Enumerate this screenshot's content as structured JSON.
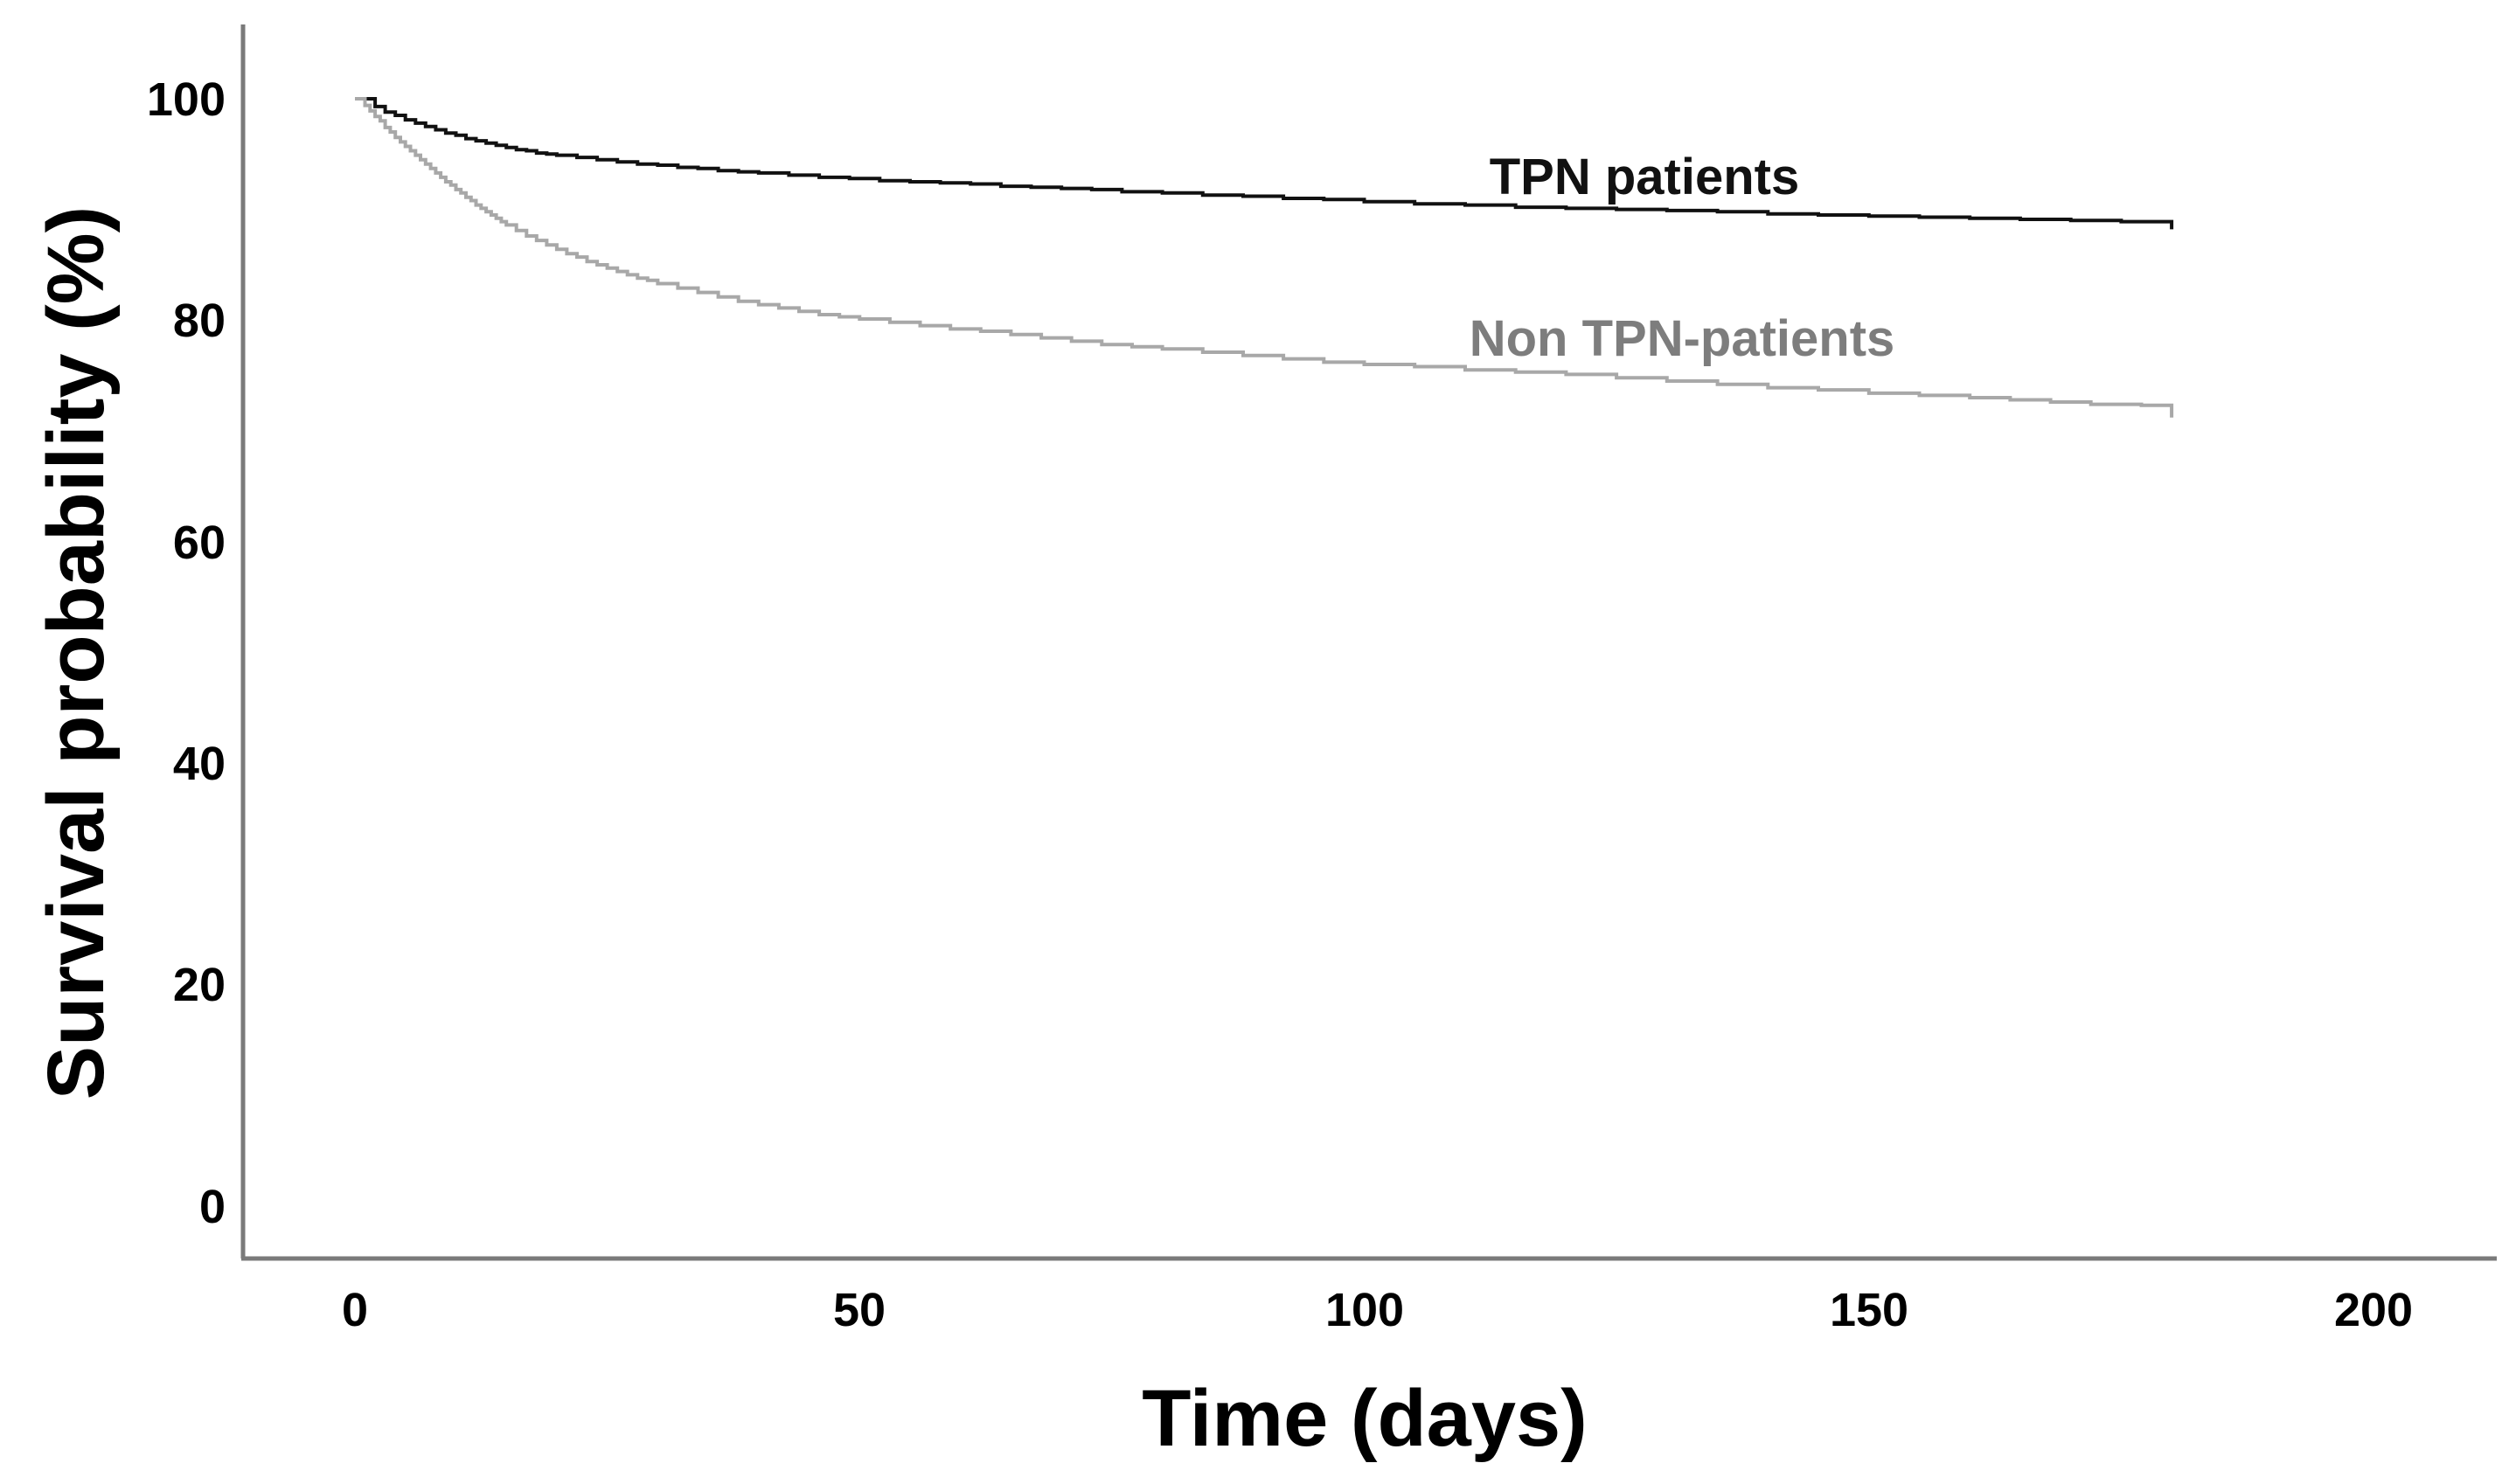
{
  "figure": {
    "background_color": "#ffffff",
    "axis_line_color": "#7a7a7a"
  },
  "chart_data": {
    "type": "line",
    "subtype": "kaplan-meier-step",
    "title": "",
    "xlabel": "Time (days)",
    "ylabel": "Survival probability (%)",
    "xlim": [
      0,
      212
    ],
    "ylim": [
      -4,
      107
    ],
    "x_ticks": [
      0,
      50,
      100,
      150,
      200
    ],
    "y_ticks": [
      100,
      80,
      60,
      40,
      20,
      0
    ],
    "grid": false,
    "legend_position": "inline-labels-on-plot",
    "series": [
      {
        "name": "TPN patients",
        "color": "#111111",
        "label_color": "#111111",
        "ends_at_day": 180,
        "points": [
          [
            0,
            100
          ],
          [
            1.5,
            100
          ],
          [
            2,
            99.3
          ],
          [
            3,
            98.8
          ],
          [
            4,
            98.5
          ],
          [
            5,
            98.1
          ],
          [
            6,
            97.8
          ],
          [
            7,
            97.5
          ],
          [
            8,
            97.2
          ],
          [
            9,
            96.9
          ],
          [
            10,
            96.7
          ],
          [
            11,
            96.4
          ],
          [
            12,
            96.2
          ],
          [
            13,
            96.0
          ],
          [
            14,
            95.8
          ],
          [
            15,
            95.6
          ],
          [
            16,
            95.4
          ],
          [
            17,
            95.3
          ],
          [
            18,
            95.1
          ],
          [
            19,
            95.0
          ],
          [
            20,
            94.9
          ],
          [
            22,
            94.7
          ],
          [
            24,
            94.5
          ],
          [
            26,
            94.3
          ],
          [
            28,
            94.1
          ],
          [
            30,
            94.0
          ],
          [
            32,
            93.8
          ],
          [
            34,
            93.7
          ],
          [
            36,
            93.5
          ],
          [
            38,
            93.4
          ],
          [
            40,
            93.3
          ],
          [
            43,
            93.1
          ],
          [
            46,
            92.9
          ],
          [
            49,
            92.8
          ],
          [
            52,
            92.6
          ],
          [
            55,
            92.5
          ],
          [
            58,
            92.4
          ],
          [
            61,
            92.3
          ],
          [
            64,
            92.1
          ],
          [
            67,
            92.0
          ],
          [
            70,
            91.9
          ],
          [
            73,
            91.8
          ],
          [
            76,
            91.6
          ],
          [
            80,
            91.5
          ],
          [
            84,
            91.3
          ],
          [
            88,
            91.2
          ],
          [
            92,
            91.0
          ],
          [
            96,
            90.9
          ],
          [
            100,
            90.7
          ],
          [
            105,
            90.5
          ],
          [
            110,
            90.4
          ],
          [
            115,
            90.2
          ],
          [
            120,
            90.1
          ],
          [
            125,
            90.0
          ],
          [
            130,
            89.9
          ],
          [
            135,
            89.8
          ],
          [
            140,
            89.6
          ],
          [
            145,
            89.5
          ],
          [
            150,
            89.4
          ],
          [
            155,
            89.3
          ],
          [
            160,
            89.2
          ],
          [
            165,
            89.1
          ],
          [
            170,
            89.0
          ],
          [
            175,
            88.9
          ],
          [
            179.5,
            88.9
          ],
          [
            180,
            88.2
          ]
        ]
      },
      {
        "name": "Non TPN-patients",
        "color": "#a8a8a8",
        "label_color": "#7d7d7d",
        "ends_at_day": 180,
        "points": [
          [
            0,
            100
          ],
          [
            1,
            99.4
          ],
          [
            1.5,
            98.9
          ],
          [
            2,
            98.4
          ],
          [
            2.5,
            98.0
          ],
          [
            3,
            97.4
          ],
          [
            3.5,
            97.0
          ],
          [
            4,
            96.5
          ],
          [
            4.5,
            96.1
          ],
          [
            5,
            95.7
          ],
          [
            5.5,
            95.3
          ],
          [
            6,
            94.9
          ],
          [
            6.5,
            94.5
          ],
          [
            7,
            94.1
          ],
          [
            7.5,
            93.7
          ],
          [
            8,
            93.3
          ],
          [
            8.5,
            92.9
          ],
          [
            9,
            92.5
          ],
          [
            9.5,
            92.2
          ],
          [
            10,
            91.8
          ],
          [
            10.5,
            91.5
          ],
          [
            11,
            91.1
          ],
          [
            11.5,
            90.8
          ],
          [
            12,
            90.4
          ],
          [
            12.5,
            90.1
          ],
          [
            13,
            89.8
          ],
          [
            13.5,
            89.5
          ],
          [
            14,
            89.2
          ],
          [
            14.5,
            88.9
          ],
          [
            15,
            88.6
          ],
          [
            16,
            88.1
          ],
          [
            17,
            87.6
          ],
          [
            18,
            87.2
          ],
          [
            19,
            86.8
          ],
          [
            20,
            86.4
          ],
          [
            21,
            86.0
          ],
          [
            22,
            85.7
          ],
          [
            23,
            85.3
          ],
          [
            24,
            85.0
          ],
          [
            25,
            84.7
          ],
          [
            26,
            84.4
          ],
          [
            27,
            84.1
          ],
          [
            28,
            83.8
          ],
          [
            29,
            83.6
          ],
          [
            30,
            83.3
          ],
          [
            32,
            82.9
          ],
          [
            34,
            82.5
          ],
          [
            36,
            82.1
          ],
          [
            38,
            81.7
          ],
          [
            40,
            81.4
          ],
          [
            42,
            81.1
          ],
          [
            44,
            80.8
          ],
          [
            46,
            80.5
          ],
          [
            48,
            80.3
          ],
          [
            50,
            80.1
          ],
          [
            53,
            79.8
          ],
          [
            56,
            79.5
          ],
          [
            59,
            79.2
          ],
          [
            62,
            79.0
          ],
          [
            65,
            78.7
          ],
          [
            68,
            78.4
          ],
          [
            71,
            78.1
          ],
          [
            74,
            77.8
          ],
          [
            77,
            77.6
          ],
          [
            80,
            77.4
          ],
          [
            84,
            77.1
          ],
          [
            88,
            76.8
          ],
          [
            92,
            76.5
          ],
          [
            96,
            76.2
          ],
          [
            100,
            76.0
          ],
          [
            105,
            75.8
          ],
          [
            110,
            75.5
          ],
          [
            115,
            75.3
          ],
          [
            120,
            75.1
          ],
          [
            125,
            74.8
          ],
          [
            130,
            74.5
          ],
          [
            135,
            74.2
          ],
          [
            140,
            73.9
          ],
          [
            145,
            73.7
          ],
          [
            150,
            73.4
          ],
          [
            155,
            73.2
          ],
          [
            160,
            73.0
          ],
          [
            164,
            72.8
          ],
          [
            168,
            72.6
          ],
          [
            172,
            72.4
          ],
          [
            175,
            72.4
          ],
          [
            177,
            72.3
          ],
          [
            179.5,
            72.3
          ],
          [
            180,
            71.2
          ]
        ]
      }
    ]
  },
  "annotations": {
    "tpn_label": "TPN patients",
    "non_tpn_label": "Non TPN-patients"
  }
}
